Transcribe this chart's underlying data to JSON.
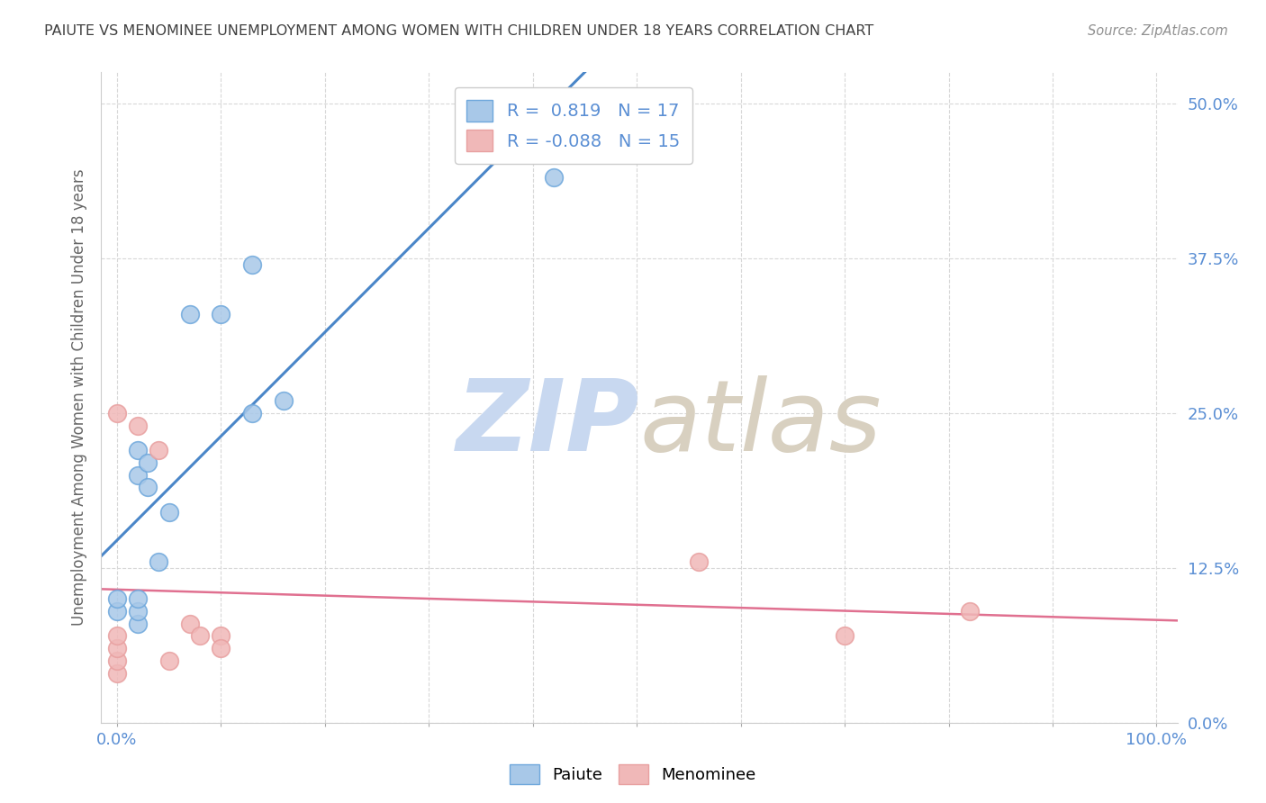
{
  "title": "PAIUTE VS MENOMINEE UNEMPLOYMENT AMONG WOMEN WITH CHILDREN UNDER 18 YEARS CORRELATION CHART",
  "source": "Source: ZipAtlas.com",
  "ylabel": "Unemployment Among Women with Children Under 18 years",
  "watermark": "ZIPatlas",
  "legend_labels": [
    "Paiute",
    "Menominee"
  ],
  "r_paiute": 0.819,
  "n_paiute": 17,
  "r_menominee": -0.088,
  "n_menominee": 15,
  "paiute_x": [
    0.0,
    0.0,
    0.02,
    0.02,
    0.02,
    0.02,
    0.02,
    0.03,
    0.03,
    0.04,
    0.05,
    0.07,
    0.1,
    0.13,
    0.13,
    0.16,
    0.42
  ],
  "paiute_y": [
    0.09,
    0.1,
    0.08,
    0.09,
    0.1,
    0.2,
    0.22,
    0.19,
    0.21,
    0.13,
    0.17,
    0.33,
    0.33,
    0.25,
    0.37,
    0.26,
    0.44
  ],
  "menominee_x": [
    0.0,
    0.0,
    0.0,
    0.0,
    0.0,
    0.02,
    0.04,
    0.05,
    0.07,
    0.08,
    0.1,
    0.1,
    0.56,
    0.7,
    0.82
  ],
  "menominee_y": [
    0.04,
    0.05,
    0.06,
    0.07,
    0.25,
    0.24,
    0.22,
    0.05,
    0.08,
    0.07,
    0.07,
    0.06,
    0.13,
    0.07,
    0.09
  ],
  "paiute_color": "#a8c8e8",
  "menominee_color": "#f0b8b8",
  "paiute_edge_color": "#6fa8dc",
  "menominee_edge_color": "#e8a0a0",
  "paiute_line_color": "#4a86c8",
  "menominee_line_color": "#e07090",
  "grid_color": "#d8d8d8",
  "background_color": "#ffffff",
  "title_color": "#404040",
  "source_color": "#909090",
  "axis_tick_color": "#5b8fd4",
  "ylabel_color": "#666666",
  "watermark_color_zip": "#c8d8f0",
  "watermark_color_atlas": "#d8d0c0",
  "ylim": [
    0.0,
    0.525
  ],
  "xlim": [
    -0.015,
    1.02
  ],
  "yticks": [
    0.0,
    0.125,
    0.25,
    0.375,
    0.5
  ],
  "ytick_labels": [
    "0.0%",
    "12.5%",
    "25.0%",
    "37.5%",
    "50.0%"
  ],
  "xticks": [
    0.0,
    0.1,
    0.2,
    0.3,
    0.4,
    0.5,
    0.6,
    0.7,
    0.8,
    0.9,
    1.0
  ],
  "xtick_labels": [
    "0.0%",
    "",
    "",
    "",
    "",
    "",
    "",
    "",
    "",
    "",
    "100.0%"
  ]
}
